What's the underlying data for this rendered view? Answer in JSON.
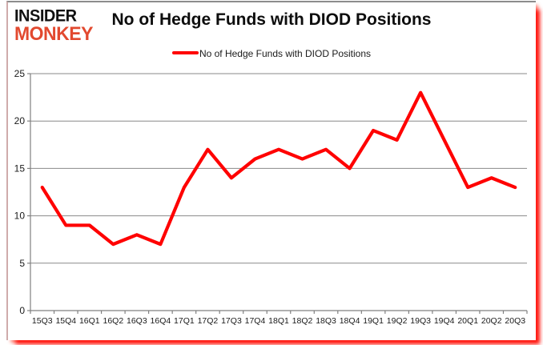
{
  "logo": {
    "line1": "INSIDER",
    "line2": "MONKEY"
  },
  "header": {
    "title": "No of Hedge Funds with DIOD Positions"
  },
  "legend": {
    "label": "No of Hedge Funds with DIOD Positions"
  },
  "colors": {
    "line": "#FF0000",
    "logo_red": "#E2492F",
    "grid": "#898989",
    "axis": "#808080",
    "tick_text": "#1a1a1a",
    "shadow_red": "#FF1008"
  },
  "chart_data": {
    "type": "line",
    "title": "No of Hedge Funds with DIOD Positions",
    "categories": [
      "15Q3",
      "15Q4",
      "16Q1",
      "16Q2",
      "16Q3",
      "16Q4",
      "17Q1",
      "17Q2",
      "17Q3",
      "17Q4",
      "18Q1",
      "18Q2",
      "18Q3",
      "18Q4",
      "19Q1",
      "19Q2",
      "19Q3",
      "19Q4",
      "20Q1",
      "20Q2",
      "20Q3"
    ],
    "series": [
      {
        "name": "No of Hedge Funds with DIOD Positions",
        "values": [
          13,
          9,
          9,
          7,
          8,
          7,
          13,
          17,
          14,
          16,
          17,
          16,
          17,
          15,
          19,
          18,
          23,
          18,
          13,
          14,
          13
        ]
      }
    ],
    "xlabel": "",
    "ylabel": "",
    "ylim": [
      0,
      25
    ],
    "yticks": [
      0,
      5,
      10,
      15,
      20,
      25
    ],
    "grid": true,
    "legend_position": "top",
    "line_color": "#FF0000"
  }
}
